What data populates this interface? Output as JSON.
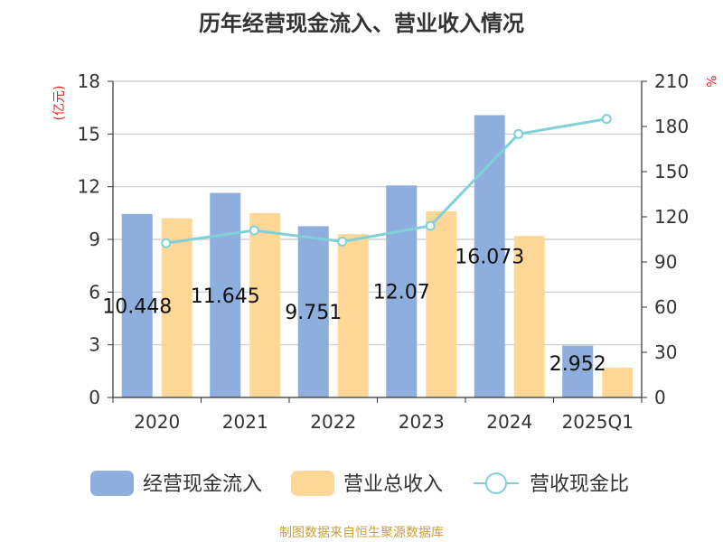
{
  "chart_data": {
    "type": "bar",
    "title": "历年经营现金流入、营业收入情况",
    "categories": [
      "2020",
      "2021",
      "2022",
      "2023",
      "2024",
      "2025Q1"
    ],
    "y_left_unit": "(亿元)",
    "y_right_unit": "%",
    "ylim_left": [
      0,
      18
    ],
    "y_left_ticks": [
      "0",
      "3",
      "6",
      "9",
      "12",
      "15",
      "18"
    ],
    "ylim_right": [
      0,
      210
    ],
    "y_right_ticks": [
      "0",
      "30",
      "60",
      "90",
      "120",
      "150",
      "180",
      "210"
    ],
    "grid": true,
    "legend_position": "bottom",
    "series": [
      {
        "name": "经营现金流入",
        "kind": "bar",
        "axis": "left",
        "color": "#8eaedd",
        "values": [
          10.448,
          11.645,
          9.751,
          12.07,
          16.073,
          2.952
        ],
        "labels": [
          "10.448",
          "11.645",
          "9.751",
          "12.07",
          "16.073",
          "2.952"
        ]
      },
      {
        "name": "营业总收入",
        "kind": "bar",
        "axis": "left",
        "color": "#ffd898",
        "values": [
          10.2,
          10.5,
          9.3,
          10.6,
          9.2,
          1.7
        ]
      },
      {
        "name": "营收现金比",
        "kind": "line",
        "axis": "right",
        "color": "#7fd0d8",
        "values": [
          102.5,
          111,
          103.5,
          114,
          175,
          185
        ]
      }
    ],
    "source": "制图数据来自恒生聚源数据库"
  }
}
